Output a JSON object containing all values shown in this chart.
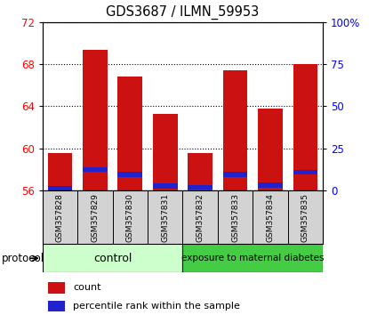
{
  "title": "GDS3687 / ILMN_59953",
  "categories": [
    "GSM357828",
    "GSM357829",
    "GSM357830",
    "GSM357831",
    "GSM357832",
    "GSM357833",
    "GSM357834",
    "GSM357835"
  ],
  "bar_bottoms": [
    56,
    56,
    56,
    56,
    56,
    56,
    56,
    56
  ],
  "bar_tops": [
    59.6,
    69.4,
    66.8,
    63.3,
    59.6,
    67.4,
    63.8,
    68.0
  ],
  "blue_bottoms": [
    56.0,
    57.8,
    57.3,
    56.2,
    56.1,
    57.3,
    56.3,
    57.5
  ],
  "blue_heights": [
    0.45,
    0.45,
    0.45,
    0.45,
    0.45,
    0.45,
    0.45,
    0.45
  ],
  "bar_color": "#cc1111",
  "blue_color": "#2222cc",
  "ylim_left": [
    56,
    72
  ],
  "yticks_left": [
    56,
    60,
    64,
    68,
    72
  ],
  "ylim_right": [
    0,
    100
  ],
  "yticks_right": [
    0,
    25,
    50,
    75,
    100
  ],
  "ytick_labels_right": [
    "0",
    "25",
    "50",
    "75",
    "100%"
  ],
  "grid_color": "black",
  "plot_bg": "white",
  "control_color": "#ccffcc",
  "exposure_color": "#44cc44",
  "control_label": "control",
  "exposure_label": "exposure to maternal diabetes",
  "protocol_label": "protocol",
  "legend_count": "count",
  "legend_percentile": "percentile rank within the sample"
}
